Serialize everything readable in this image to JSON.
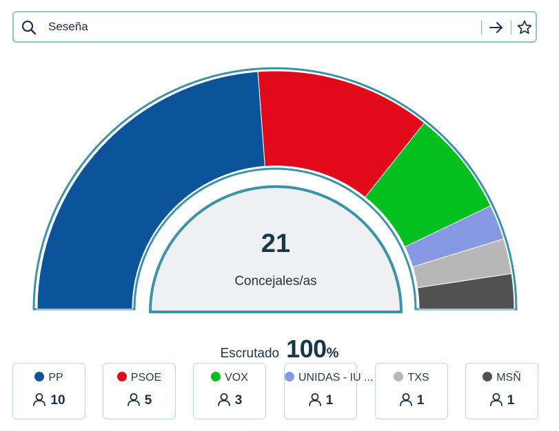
{
  "search": {
    "value": "Seseña",
    "placeholder": ""
  },
  "chart_data": {
    "type": "pie",
    "subtype": "parliament-half-donut",
    "total": 21,
    "total_label": "Concejales/as",
    "categories": [
      "PP",
      "PSOE",
      "VOX",
      "UNIDAS - IU ...",
      "TXS",
      "MSÑ"
    ],
    "values": [
      10,
      5,
      3,
      1,
      1,
      1
    ],
    "colors": [
      "#0b539b",
      "#e20a1a",
      "#03c01e",
      "#8697e3",
      "#b8b8b8",
      "#515151"
    ]
  },
  "scrutiny": {
    "label": "Escrutado",
    "value": "100",
    "unit": "%"
  },
  "parties": [
    {
      "name": "PP",
      "seats": "10",
      "color": "#0b539b"
    },
    {
      "name": "PSOE",
      "seats": "5",
      "color": "#e20a1a"
    },
    {
      "name": "VOX",
      "seats": "3",
      "color": "#03c01e"
    },
    {
      "name": "UNIDAS - IU ...",
      "seats": "1",
      "color": "#8697e3"
    },
    {
      "name": "TXS",
      "seats": "1",
      "color": "#b8b8b8"
    },
    {
      "name": "MSÑ",
      "seats": "1",
      "color": "#515151"
    }
  ]
}
